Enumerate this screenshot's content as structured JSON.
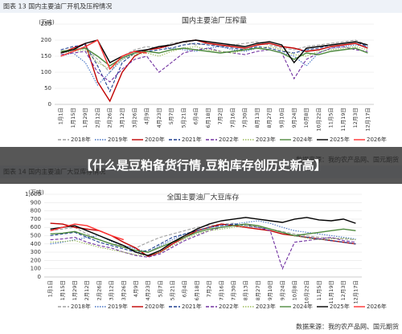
{
  "overlay_title": "【什么是豆粕备货行情,豆粕库存创历史新高】",
  "chart_data": [
    {
      "type": "line",
      "caption": "图表 13 国内主要油厂开机及压榨情况",
      "title": "国内主要油厂压榨量",
      "ylabel": "(万吨)",
      "source": "数据来源：我的农产品网、国元期货",
      "categories": [
        "1月1日",
        "1月15日",
        "1月29日",
        "2月12日",
        "2月26日",
        "3月12日",
        "3月26日",
        "4月9日",
        "4月23日",
        "5月7日",
        "5月21日",
        "6月4日",
        "6月18日",
        "7月2日",
        "7月16日",
        "7月30日",
        "8月13日",
        "8月27日",
        "9月10日",
        "9月24日",
        "10月8日",
        "10月22日",
        "11月5日",
        "11月19日",
        "12月3日",
        "12月17日"
      ],
      "ylim": [
        0,
        250
      ],
      "yticks": [
        0,
        50,
        100,
        150,
        200,
        250
      ],
      "series": [
        {
          "name": "2018年",
          "color": "#a0a0a0",
          "style": "dashed",
          "values": [
            165,
            170,
            175,
            140,
            100,
            150,
            170,
            180,
            175,
            190,
            195,
            185,
            190,
            180,
            185,
            190,
            195,
            185,
            175,
            170,
            180,
            185,
            190,
            195,
            200,
            185
          ]
        },
        {
          "name": "2019年",
          "color": "#4472c4",
          "style": "dotted",
          "values": [
            150,
            160,
            130,
            60,
            100,
            140,
            160,
            170,
            180,
            175,
            170,
            165,
            175,
            180,
            170,
            165,
            175,
            170,
            160,
            150,
            120,
            160,
            175,
            180,
            185,
            180
          ]
        },
        {
          "name": "2020年",
          "color": "#c00000",
          "style": "solid",
          "values": [
            160,
            175,
            190,
            70,
            10,
            100,
            150,
            170,
            175,
            185,
            195,
            200,
            190,
            185,
            180,
            175,
            185,
            190,
            180,
            175,
            165,
            170,
            180,
            185,
            190,
            175
          ]
        },
        {
          "name": "2021年",
          "color": "#1f3f8f",
          "style": "dashed",
          "values": [
            170,
            180,
            185,
            120,
            40,
            130,
            160,
            165,
            170,
            175,
            185,
            190,
            185,
            180,
            175,
            170,
            180,
            175,
            165,
            160,
            170,
            175,
            185,
            190,
            195,
            180
          ]
        },
        {
          "name": "2022年",
          "color": "#7030a0",
          "style": "dashed",
          "values": [
            155,
            160,
            165,
            100,
            70,
            110,
            140,
            150,
            100,
            130,
            160,
            170,
            175,
            165,
            160,
            155,
            165,
            170,
            160,
            80,
            140,
            160,
            175,
            180,
            170,
            165
          ]
        },
        {
          "name": "2023年",
          "color": "#9bbb59",
          "style": "dotted",
          "values": [
            160,
            165,
            170,
            130,
            110,
            140,
            155,
            160,
            150,
            165,
            175,
            180,
            170,
            165,
            160,
            170,
            175,
            180,
            170,
            155,
            150,
            165,
            170,
            175,
            180,
            170
          ]
        },
        {
          "name": "2024年",
          "color": "#4e8a3e",
          "style": "solid",
          "values": [
            165,
            170,
            175,
            150,
            120,
            145,
            160,
            165,
            160,
            170,
            175,
            170,
            165,
            160,
            165,
            170,
            175,
            170,
            160,
            140,
            160,
            155,
            165,
            170,
            175,
            160
          ]
        },
        {
          "name": "2025年",
          "color": "#000000",
          "style": "solid",
          "values": [
            160,
            170,
            190,
            200,
            130,
            150,
            165,
            170,
            180,
            185,
            195,
            200,
            195,
            190,
            185,
            180,
            190,
            195,
            185,
            130,
            175,
            180,
            185,
            190,
            195,
            185
          ]
        },
        {
          "name": "2026年",
          "color": "#ff3030",
          "style": "solid",
          "values": [
            150,
            165,
            180,
            200,
            110,
            150,
            165,
            160,
            null,
            null,
            null,
            null,
            null,
            null,
            null,
            null,
            null,
            null,
            null,
            null,
            null,
            null,
            null,
            null,
            null,
            null
          ]
        }
      ]
    },
    {
      "type": "line",
      "caption": "图表 14 国内主要油厂大豆库存情况",
      "title": "全国主要油厂大豆库存",
      "ylabel": "(万吨)",
      "source": "数据来源：我的农产品网、国元期货",
      "categories": [
        "1月1日",
        "1月15日",
        "1月29日",
        "2月12日",
        "2月26日",
        "3月12日",
        "3月26日",
        "4月9日",
        "4月23日",
        "5月7日",
        "5月21日",
        "6月4日",
        "6月18日",
        "7月2日",
        "7月16日",
        "7月30日",
        "8月13日",
        "8月27日",
        "9月10日",
        "9月24日",
        "10月8日",
        "10月22日",
        "11月5日",
        "11月19日",
        "12月3日",
        "12月17日"
      ],
      "ylim": [
        0,
        1000
      ],
      "yticks": [
        0,
        100,
        200,
        300,
        400,
        500,
        600,
        700,
        800,
        900,
        {
          "value": 1000,
          "label": "1,000"
        }
      ],
      "series": [
        {
          "name": "2018年",
          "color": "#a0a0a0",
          "style": "dashed",
          "values": [
            560,
            580,
            600,
            520,
            450,
            400,
            380,
            350,
            420,
            480,
            520,
            560,
            600,
            620,
            640,
            650,
            620,
            600,
            580,
            550,
            520,
            500,
            480,
            470,
            460,
            450
          ]
        },
        {
          "name": "2019年",
          "color": "#4472c4",
          "style": "dotted",
          "values": [
            400,
            420,
            450,
            480,
            500,
            430,
            380,
            340,
            300,
            380,
            450,
            520,
            560,
            600,
            620,
            640,
            660,
            680,
            650,
            600,
            560,
            540,
            520,
            500,
            480,
            460
          ]
        },
        {
          "name": "2020年",
          "color": "#c00000",
          "style": "solid",
          "values": [
            650,
            640,
            600,
            580,
            560,
            500,
            420,
            350,
            250,
            300,
            400,
            480,
            560,
            600,
            640,
            620,
            600,
            580,
            560,
            520,
            500,
            480,
            460,
            440,
            420,
            400
          ]
        },
        {
          "name": "2021年",
          "color": "#1f3f8f",
          "style": "dashed",
          "values": [
            500,
            520,
            540,
            480,
            420,
            380,
            340,
            300,
            320,
            400,
            480,
            520,
            560,
            600,
            620,
            640,
            620,
            600,
            580,
            540,
            500,
            480,
            460,
            440,
            420,
            400
          ]
        },
        {
          "name": "2022年",
          "color": "#7030a0",
          "style": "dashed",
          "values": [
            450,
            460,
            480,
            420,
            380,
            350,
            300,
            260,
            240,
            280,
            360,
            440,
            500,
            560,
            600,
            620,
            640,
            600,
            560,
            100,
            420,
            440,
            460,
            480,
            440,
            420
          ]
        },
        {
          "name": "2023年",
          "color": "#9bbb59",
          "style": "dotted",
          "values": [
            420,
            430,
            440,
            400,
            360,
            330,
            300,
            270,
            260,
            300,
            380,
            460,
            520,
            560,
            580,
            600,
            620,
            610,
            580,
            540,
            500,
            470,
            450,
            460,
            470,
            450
          ]
        },
        {
          "name": "2024年",
          "color": "#4e8a3e",
          "style": "solid",
          "values": [
            520,
            530,
            550,
            500,
            450,
            400,
            360,
            320,
            300,
            360,
            420,
            480,
            540,
            580,
            600,
            620,
            640,
            620,
            580,
            540,
            500,
            520,
            540,
            560,
            580,
            560
          ]
        },
        {
          "name": "2025年",
          "color": "#000000",
          "style": "solid",
          "values": [
            580,
            600,
            620,
            560,
            500,
            440,
            380,
            300,
            260,
            320,
            420,
            500,
            580,
            640,
            680,
            700,
            720,
            700,
            680,
            660,
            700,
            720,
            690,
            680,
            700,
            650
          ]
        },
        {
          "name": "2026年",
          "color": "#ff3030",
          "style": "solid",
          "values": [
            560,
            600,
            640,
            620,
            560,
            500,
            450,
            null,
            null,
            null,
            null,
            null,
            null,
            null,
            null,
            null,
            null,
            null,
            null,
            null,
            null,
            null,
            null,
            null,
            null,
            null
          ]
        }
      ]
    }
  ]
}
